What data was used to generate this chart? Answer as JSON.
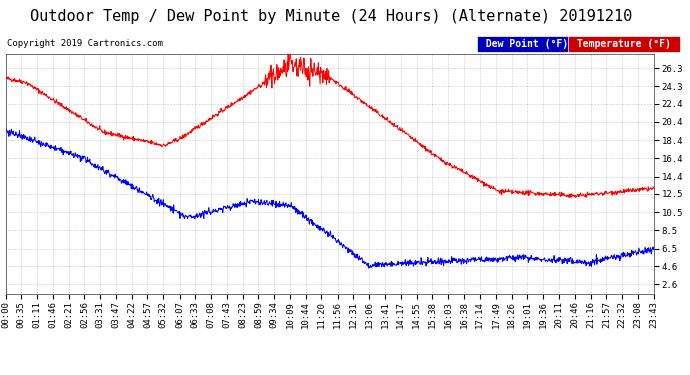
{
  "title": "Outdoor Temp / Dew Point by Minute (24 Hours) (Alternate) 20191210",
  "copyright": "Copyright 2019 Cartronics.com",
  "legend_dew": "Dew Point (°F)",
  "legend_temp": "Temperature (°F)",
  "dew_color": "#0000ff",
  "temp_color": "#ff0000",
  "legend_dew_bg": "#0000bb",
  "legend_temp_bg": "#cc0000",
  "background_color": "#ffffff",
  "plot_bg_color": "#ffffff",
  "grid_color": "#999999",
  "yticks": [
    2.6,
    4.6,
    6.5,
    8.5,
    10.5,
    12.5,
    14.4,
    16.4,
    18.4,
    20.4,
    22.4,
    24.3,
    26.3
  ],
  "ymin": 1.5,
  "ymax": 27.8,
  "title_fontsize": 11,
  "copyright_fontsize": 6.5,
  "tick_fontsize": 6.5,
  "legend_fontsize": 7
}
